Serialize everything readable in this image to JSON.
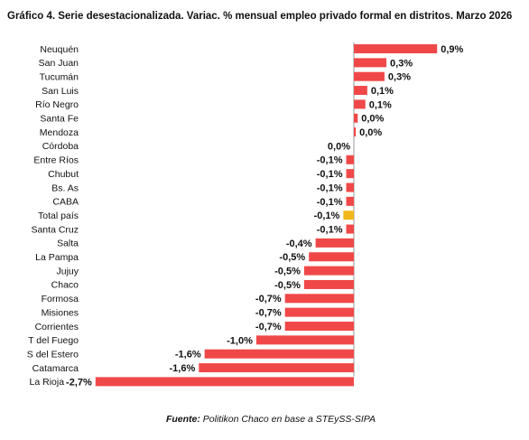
{
  "chart_data": {
    "type": "hbar",
    "title": "Gráfico 4. Serie desestacionalizada. Variac. % mensual empleo privado formal en distritos. Marzo 2026",
    "categories": [
      "Neuquén",
      "San Juan",
      "Tucumán",
      "San Luis",
      "Río Negro",
      "Santa Fe",
      "Mendoza",
      "Córdoba",
      "Entre Ríos",
      "Chubut",
      "Bs. As",
      "CABA",
      "Total país",
      "Santa Cruz",
      "Salta",
      "La Pampa",
      "Jujuy",
      "Chaco",
      "Formosa",
      "Misiones",
      "Corrientes",
      "T del Fuego",
      "S del Estero",
      "Catamarca",
      "La Rioja"
    ],
    "values": [
      0.87,
      0.34,
      0.32,
      0.14,
      0.12,
      0.04,
      0.02,
      0,
      -0.08,
      -0.08,
      -0.08,
      -0.08,
      -0.11,
      -0.08,
      -0.4,
      -0.47,
      -0.52,
      -0.52,
      -0.72,
      -0.72,
      -0.72,
      -1.02,
      -1.56,
      -1.62,
      -2.7
    ],
    "value_labels": [
      "0,9%",
      "0,3%",
      "0,3%",
      "0,1%",
      "0,1%",
      "0,0%",
      "0,0%",
      "0,0%",
      "-0,1%",
      "-0,1%",
      "-0,1%",
      "-0,1%",
      "-0,1%",
      "-0,1%",
      "-0,4%",
      "-0,5%",
      "-0,5%",
      "-0,5%",
      "-0,7%",
      "-0,7%",
      "-0,7%",
      "-1,0%",
      "-1,6%",
      "-1,6%",
      "-2,7%"
    ],
    "colors": [
      "#f04848",
      "#f04848",
      "#f04848",
      "#f04848",
      "#f04848",
      "#f04848",
      "#f04848",
      "#f04848",
      "#f04848",
      "#f04848",
      "#f04848",
      "#f04848",
      "#f2b81a",
      "#f04848",
      "#f04848",
      "#f04848",
      "#f04848",
      "#f04848",
      "#f04848",
      "#f04848",
      "#f04848",
      "#f04848",
      "#f04848",
      "#f04848",
      "#f04848"
    ],
    "source_label": "Fuente:",
    "source": "Politikon Chaco en base a STEySS-SIPA"
  }
}
